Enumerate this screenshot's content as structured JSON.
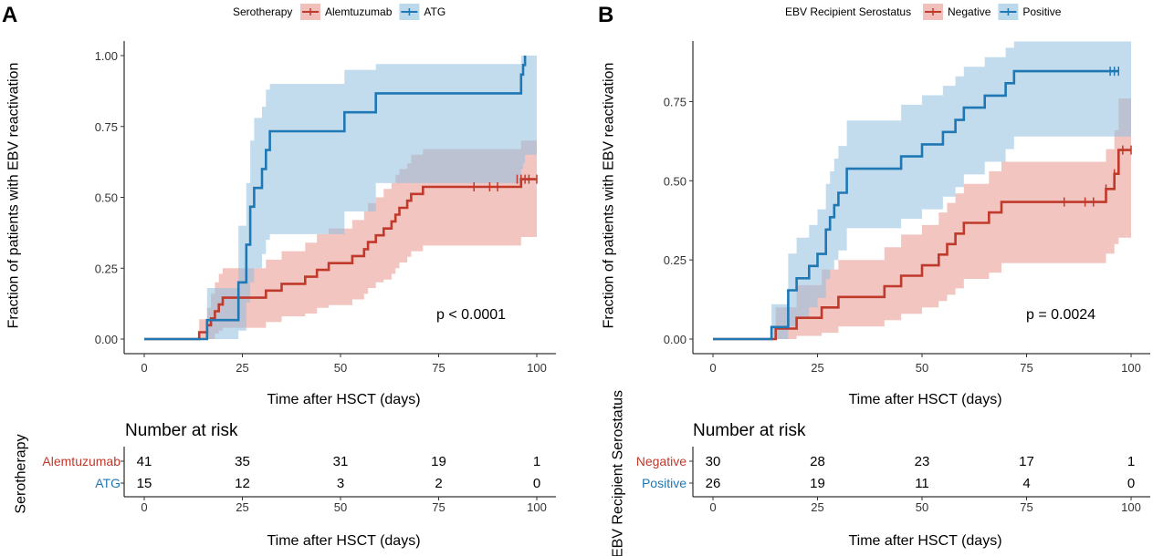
{
  "panels": [
    {
      "letter": "A",
      "legend_title": "Serotherapy",
      "ylabel": "Fraction of patients with EBV reactivation",
      "xlabel": "Time after HSCT (days)",
      "p_value": "p < 0.0001",
      "risk_title": "Number at risk",
      "risk_ylabel": "Serotherapy",
      "risk_xlabel": "Time after HSCT (days)"
    },
    {
      "letter": "B",
      "legend_title": "EBV Recipient Serostatus",
      "ylabel": "Fraction of patients with EBV reactivation",
      "xlabel": "Time after HSCT (days)",
      "p_value": "p = 0.0024",
      "risk_title": "Number at risk",
      "risk_ylabel": "EBV Recipient Serostatus",
      "risk_xlabel": "Time after HSCT (days)"
    }
  ],
  "chart_data": [
    {
      "type": "line",
      "title": "",
      "xlabel": "Time after HSCT (days)",
      "ylabel": "Fraction of patients with EBV reactivation",
      "xlim": [
        0,
        100
      ],
      "ylim": [
        0,
        1
      ],
      "xticks": [
        0,
        25,
        50,
        75,
        100
      ],
      "yticks": [
        0,
        0.25,
        0.5,
        0.75,
        1.0
      ],
      "ytick_labels": [
        "0.00",
        "0.25",
        "0.50",
        "0.75",
        "1.00"
      ],
      "series": [
        {
          "name": "Alemtuzumab",
          "color": "#c0392b",
          "band_color": "#e8968c",
          "x": [
            0,
            14,
            16,
            17,
            18,
            19,
            20,
            21,
            23,
            25,
            28,
            31,
            35,
            38,
            41,
            44,
            47,
            50,
            53,
            56,
            57,
            59,
            60,
            61,
            63,
            64,
            65,
            67,
            68,
            70,
            71,
            73,
            96,
            97
          ],
          "y": [
            0,
            0.024,
            0.049,
            0.073,
            0.098,
            0.122,
            0.146,
            0.146,
            0.146,
            0.146,
            0.146,
            0.171,
            0.195,
            0.195,
            0.22,
            0.244,
            0.268,
            0.268,
            0.293,
            0.317,
            0.342,
            0.366,
            0.366,
            0.39,
            0.415,
            0.439,
            0.463,
            0.488,
            0.512,
            0.512,
            0.537,
            0.537,
            0.564,
            0.564
          ],
          "lower": [
            0,
            0,
            0,
            0,
            0.02,
            0.03,
            0.04,
            0.04,
            0.04,
            0.04,
            0.04,
            0.06,
            0.08,
            0.08,
            0.09,
            0.11,
            0.12,
            0.12,
            0.14,
            0.16,
            0.18,
            0.2,
            0.2,
            0.21,
            0.23,
            0.25,
            0.27,
            0.29,
            0.31,
            0.31,
            0.33,
            0.33,
            0.36,
            0.36
          ],
          "upper": [
            0,
            0.07,
            0.11,
            0.16,
            0.2,
            0.23,
            0.25,
            0.25,
            0.25,
            0.25,
            0.25,
            0.28,
            0.31,
            0.31,
            0.34,
            0.37,
            0.39,
            0.39,
            0.42,
            0.45,
            0.48,
            0.5,
            0.5,
            0.53,
            0.55,
            0.58,
            0.6,
            0.62,
            0.65,
            0.65,
            0.67,
            0.67,
            0.7,
            0.7
          ],
          "censor_x": [
            84,
            88,
            90,
            95,
            96,
            97,
            98,
            100
          ],
          "censor_y": [
            0.537,
            0.537,
            0.537,
            0.564,
            0.564,
            0.564,
            0.564,
            0.564
          ]
        },
        {
          "name": "ATG",
          "color": "#1f77b4",
          "band_color": "#8fbfe0",
          "x": [
            0,
            16,
            24,
            26,
            27,
            28,
            29,
            30,
            31,
            32,
            47,
            51,
            59,
            96,
            96.5,
            97
          ],
          "y": [
            0,
            0.067,
            0.2,
            0.333,
            0.467,
            0.533,
            0.533,
            0.6,
            0.667,
            0.733,
            0.733,
            0.8,
            0.867,
            0.933,
            0.967,
            1.0
          ],
          "lower": [
            0,
            0,
            0.03,
            0.13,
            0.2,
            0.25,
            0.25,
            0.3,
            0.35,
            0.37,
            0.37,
            0.45,
            0.55,
            0.6,
            0.62,
            0.65
          ],
          "upper": [
            0,
            0.18,
            0.4,
            0.55,
            0.7,
            0.78,
            0.78,
            0.82,
            0.88,
            0.9,
            0.9,
            0.95,
            0.97,
            1.0,
            1.0,
            1.0
          ],
          "censor_x": [],
          "censor_y": []
        }
      ],
      "risk_table": {
        "title": "Number at risk",
        "groups": [
          "Alemtuzumab",
          "ATG"
        ],
        "times": [
          0,
          25,
          50,
          75,
          100
        ],
        "counts": [
          [
            41,
            35,
            31,
            19,
            1
          ],
          [
            15,
            12,
            3,
            2,
            0
          ]
        ]
      }
    },
    {
      "type": "line",
      "title": "",
      "xlabel": "Time after HSCT (days)",
      "ylabel": "Fraction of patients with EBV reactivation",
      "xlim": [
        0,
        100
      ],
      "ylim": [
        0,
        0.95
      ],
      "xticks": [
        0,
        25,
        50,
        75,
        100
      ],
      "yticks": [
        0,
        0.25,
        0.5,
        0.75
      ],
      "ytick_labels": [
        "0.00",
        "0.25",
        "0.50",
        "0.75"
      ],
      "series": [
        {
          "name": "Negative",
          "color": "#c0392b",
          "band_color": "#e8968c",
          "x": [
            0,
            15,
            16,
            20,
            23,
            26,
            30,
            33,
            36,
            41,
            45,
            50,
            54,
            56,
            58,
            60,
            63,
            66,
            69,
            72,
            75,
            94,
            96,
            97
          ],
          "y": [
            0,
            0.033,
            0.033,
            0.067,
            0.067,
            0.1,
            0.133,
            0.133,
            0.133,
            0.167,
            0.2,
            0.233,
            0.267,
            0.3,
            0.333,
            0.367,
            0.367,
            0.4,
            0.433,
            0.433,
            0.433,
            0.474,
            0.522,
            0.597
          ],
          "lower": [
            0,
            0,
            0,
            0.01,
            0.01,
            0.02,
            0.04,
            0.04,
            0.04,
            0.06,
            0.08,
            0.1,
            0.12,
            0.14,
            0.16,
            0.19,
            0.19,
            0.21,
            0.24,
            0.24,
            0.24,
            0.27,
            0.3,
            0.32
          ],
          "upper": [
            0,
            0.1,
            0.1,
            0.17,
            0.17,
            0.22,
            0.25,
            0.25,
            0.25,
            0.29,
            0.33,
            0.36,
            0.4,
            0.43,
            0.46,
            0.49,
            0.49,
            0.53,
            0.56,
            0.56,
            0.56,
            0.6,
            0.66,
            0.76
          ],
          "censor_x": [
            84,
            89,
            91,
            94,
            96,
            98,
            100
          ],
          "censor_y": [
            0.433,
            0.433,
            0.433,
            0.474,
            0.522,
            0.597,
            0.597
          ]
        },
        {
          "name": "Positive",
          "color": "#1f77b4",
          "band_color": "#8fbfe0",
          "x": [
            0,
            14,
            18,
            20,
            23,
            25,
            27,
            28,
            29,
            30,
            32,
            40,
            45,
            50,
            55,
            58,
            60,
            62,
            65,
            70,
            72,
            97
          ],
          "y": [
            0,
            0.038,
            0.154,
            0.192,
            0.231,
            0.269,
            0.346,
            0.385,
            0.423,
            0.462,
            0.538,
            0.538,
            0.577,
            0.615,
            0.654,
            0.692,
            0.731,
            0.731,
            0.769,
            0.808,
            0.846,
            0.846
          ],
          "lower": [
            0,
            0,
            0.04,
            0.07,
            0.1,
            0.13,
            0.19,
            0.22,
            0.25,
            0.28,
            0.35,
            0.35,
            0.38,
            0.41,
            0.45,
            0.48,
            0.52,
            0.52,
            0.56,
            0.6,
            0.64,
            0.64
          ],
          "upper": [
            0,
            0.11,
            0.27,
            0.32,
            0.36,
            0.41,
            0.49,
            0.53,
            0.57,
            0.61,
            0.69,
            0.69,
            0.74,
            0.77,
            0.8,
            0.83,
            0.86,
            0.86,
            0.89,
            0.92,
            0.94,
            0.94
          ],
          "censor_x": [
            95,
            96,
            97
          ],
          "censor_y": [
            0.846,
            0.846,
            0.846
          ]
        }
      ],
      "risk_table": {
        "title": "Number at risk",
        "groups": [
          "Negative",
          "Positive"
        ],
        "times": [
          0,
          25,
          50,
          75,
          100
        ],
        "counts": [
          [
            30,
            28,
            23,
            17,
            1
          ],
          [
            26,
            19,
            11,
            4,
            0
          ]
        ]
      }
    }
  ]
}
